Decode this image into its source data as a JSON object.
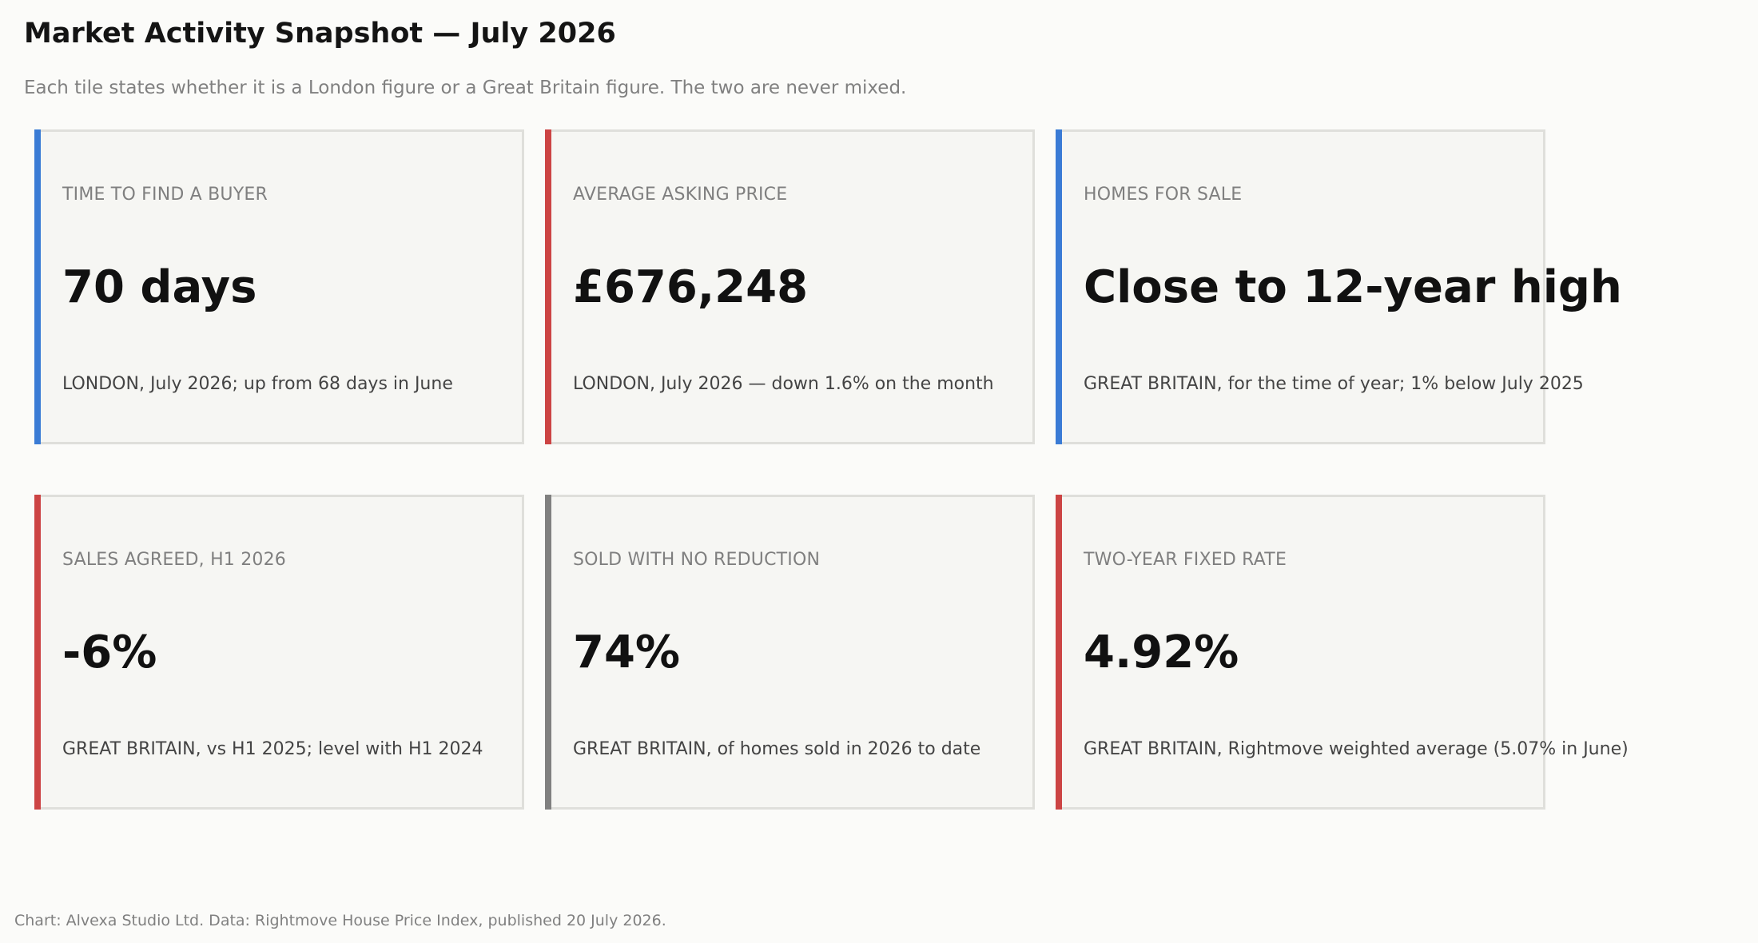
{
  "header": {
    "title": "Market Activity Snapshot — July 2026",
    "subtitle": "Each tile states whether it is a London figure or a Great Britain figure. The two are never mixed."
  },
  "colors": {
    "london_accent": "#3a7bd5",
    "negative_accent": "#cc4444",
    "neutral_accent": "#808080",
    "tile_background": "#f6f6f3",
    "tile_border": "#dfdfdb"
  },
  "chart_data": {
    "type": "table",
    "tiles": [
      {
        "label": "TIME TO FIND A BUYER",
        "value": "70 days",
        "note": "LONDON, July 2026; up from 68 days in June",
        "accent": "#3a7bd5"
      },
      {
        "label": "AVERAGE ASKING PRICE",
        "value": "£676,248",
        "note": "LONDON, July 2026 — down 1.6% on the month",
        "accent": "#cc4444"
      },
      {
        "label": "HOMES FOR SALE",
        "value": "Close to 12-year high",
        "note": "GREAT BRITAIN, for the time of year; 1% below July 2025",
        "accent": "#3a7bd5"
      },
      {
        "label": "SALES AGREED, H1 2026",
        "value": "-6%",
        "note": "GREAT BRITAIN, vs H1 2025; level with H1 2024",
        "accent": "#cc4444"
      },
      {
        "label": "SOLD WITH NO REDUCTION",
        "value": "74%",
        "note": "GREAT BRITAIN, of homes sold in 2026 to date",
        "accent": "#808080"
      },
      {
        "label": "TWO-YEAR FIXED RATE",
        "value": "4.92%",
        "note": "GREAT BRITAIN, Rightmove weighted average (5.07% in June)",
        "accent": "#cc4444"
      }
    ]
  },
  "footer": {
    "source": "Chart: Alvexa Studio Ltd. Data: Rightmove House Price Index, published 20 July 2026."
  }
}
